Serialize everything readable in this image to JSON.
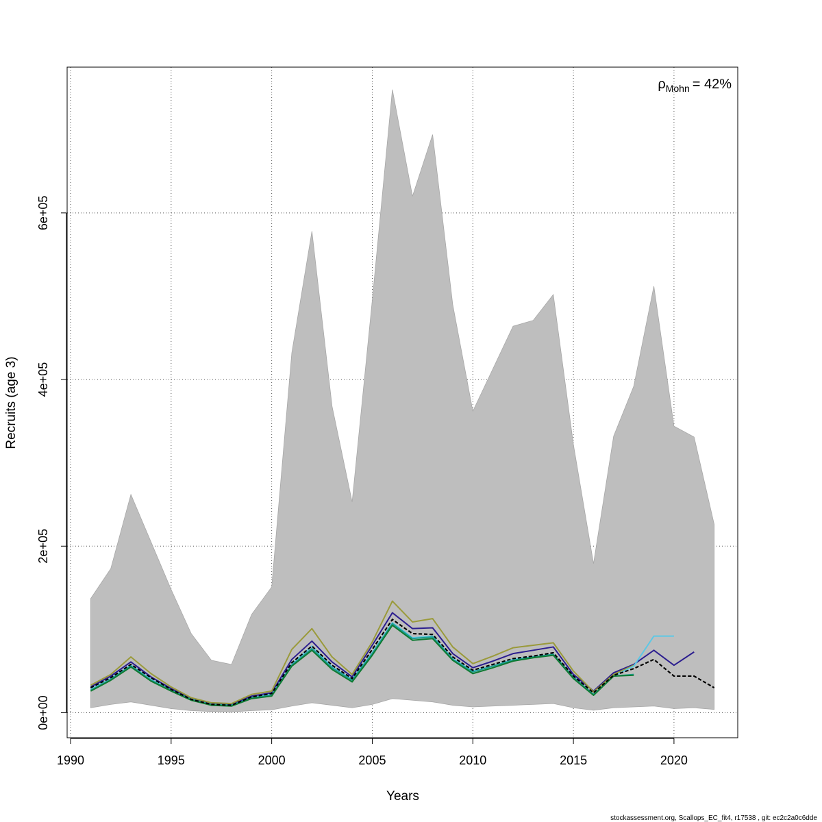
{
  "chart_data": {
    "type": "line",
    "title": "",
    "xlabel": "Years",
    "ylabel": "Recruits (age 3)",
    "xlim": [
      1990,
      2023
    ],
    "ylim": [
      -30000,
      775000
    ],
    "grid": true,
    "x_ticks": [
      1990,
      1995,
      2000,
      2005,
      2010,
      2015,
      2020
    ],
    "x_tick_labels": [
      "1990",
      "1995",
      "2000",
      "2005",
      "2010",
      "2015",
      "2020"
    ],
    "y_ticks": [
      0,
      200000,
      400000,
      600000
    ],
    "y_tick_labels": [
      "0e+00",
      "2e+05",
      "4e+05",
      "6e+05"
    ],
    "annotation": {
      "symbol": "ρ",
      "subscript": "Mohn",
      "text": "= 42%",
      "placement": "top-right"
    },
    "footer": "stockassessment.org, Scallops_EC_fit4, r17538 , git: ec2c2a0c6dde",
    "band": {
      "color": "#bebebe",
      "x": [
        1991,
        1992,
        1993,
        1994,
        1995,
        1996,
        1997,
        1998,
        1999,
        2000,
        2001,
        2002,
        2003,
        2004,
        2005,
        2006,
        2007,
        2008,
        2009,
        2010,
        2011,
        2012,
        2013,
        2014,
        2015,
        2016,
        2017,
        2018,
        2019,
        2020,
        2021,
        2022
      ],
      "upper": [
        137000,
        173000,
        262000,
        205000,
        148000,
        95000,
        63000,
        58000,
        118000,
        151000,
        432000,
        578000,
        368000,
        253000,
        495000,
        748000,
        620000,
        694000,
        490000,
        362000,
        413000,
        464000,
        471000,
        502000,
        322000,
        179000,
        332000,
        392000,
        512000,
        344000,
        331000,
        226000
      ],
      "lower": [
        6000,
        10000,
        13000,
        9000,
        5000,
        2500,
        1500,
        1000,
        2500,
        3500,
        8000,
        12000,
        9000,
        6000,
        10000,
        17000,
        15000,
        13000,
        9000,
        7000,
        8000,
        9000,
        10000,
        11000,
        6000,
        3000,
        6000,
        7000,
        8000,
        5000,
        6000,
        4000
      ]
    },
    "series": [
      {
        "color": "#000000",
        "dash": true,
        "x": [
          1991,
          1992,
          1993,
          1994,
          1995,
          1996,
          1997,
          1998,
          1999,
          2000,
          2001,
          2002,
          2003,
          2004,
          2005,
          2006,
          2007,
          2008,
          2009,
          2010,
          2011,
          2012,
          2013,
          2014,
          2015,
          2016,
          2017,
          2018,
          2019,
          2020,
          2021,
          2022
        ],
        "values": [
          30000,
          42000,
          58000,
          42000,
          28000,
          16000,
          10000,
          9000,
          19000,
          23000,
          60000,
          80000,
          57000,
          41000,
          76000,
          112000,
          95000,
          94000,
          67000,
          51000,
          58000,
          65000,
          68000,
          72000,
          44000,
          24000,
          45000,
          53000,
          64000,
          44000,
          44000,
          30000
        ]
      },
      {
        "color": "#2c1e8f",
        "dash": false,
        "x": [
          1991,
          1992,
          1993,
          1994,
          1995,
          1996,
          1997,
          1998,
          1999,
          2000,
          2001,
          2002,
          2003,
          2004,
          2005,
          2006,
          2007,
          2008,
          2009,
          2010,
          2011,
          2012,
          2013,
          2014,
          2015,
          2016,
          2017,
          2018,
          2019,
          2020,
          2021
        ],
        "values": [
          31000,
          44000,
          61000,
          43000,
          29000,
          17000,
          11000,
          10000,
          20000,
          24000,
          64000,
          86000,
          61000,
          43000,
          81000,
          120000,
          101000,
          102000,
          71000,
          54000,
          62000,
          71000,
          75000,
          79000,
          46000,
          26000,
          48000,
          58000,
          75000,
          57000,
          73000
        ]
      },
      {
        "color": "#9a9a3a",
        "dash": false,
        "x": [
          1991,
          1992,
          1993,
          1994,
          1995,
          1996,
          1997,
          1998,
          1999,
          2000,
          2001,
          2002,
          2003,
          2004,
          2005,
          2006,
          2007,
          2008,
          2009,
          2010,
          2011,
          2012,
          2013,
          2014,
          2015,
          2016,
          2017,
          2018
        ],
        "values": [
          33000,
          46000,
          67000,
          47000,
          31000,
          18000,
          12000,
          11000,
          22000,
          26000,
          76000,
          101000,
          67000,
          46000,
          85000,
          134000,
          109000,
          113000,
          79000,
          59000,
          68000,
          78000,
          81000,
          84000,
          50000,
          25000,
          46000,
          57000
        ]
      },
      {
        "color": "#5bc8e6",
        "dash": false,
        "x": [
          1991,
          1992,
          1993,
          1994,
          1995,
          1996,
          1997,
          1998,
          1999,
          2000,
          2001,
          2002,
          2003,
          2004,
          2005,
          2006,
          2007,
          2008,
          2009,
          2010,
          2011,
          2012,
          2013,
          2014,
          2015,
          2016,
          2017,
          2018,
          2019,
          2020
        ],
        "values": [
          28000,
          41000,
          57000,
          40000,
          27000,
          16000,
          10000,
          9000,
          18000,
          22000,
          58000,
          80000,
          55000,
          40000,
          72000,
          108000,
          90000,
          92000,
          65000,
          50000,
          56000,
          64000,
          67000,
          70000,
          42000,
          22000,
          44000,
          56000,
          92000,
          92000
        ]
      },
      {
        "color": "#1a9e8f",
        "dash": false,
        "x": [
          1991,
          1992,
          1993,
          1994,
          1995,
          1996,
          1997,
          1998,
          1999,
          2000,
          2001,
          2002,
          2003,
          2004,
          2005,
          2006,
          2007,
          2008,
          2009,
          2010,
          2011,
          2012,
          2013,
          2014,
          2015,
          2016,
          2017,
          2018
        ],
        "values": [
          27000,
          40000,
          56000,
          39000,
          27000,
          16000,
          10000,
          9000,
          18000,
          21000,
          57000,
          77000,
          54000,
          39000,
          71000,
          107000,
          89000,
          91000,
          64000,
          49000,
          56000,
          63000,
          67000,
          70000,
          43000,
          22000,
          44000,
          46000
        ]
      },
      {
        "color": "#0f7a32",
        "dash": false,
        "x": [
          1991,
          1992,
          1993,
          1994,
          1995,
          1996,
          1997,
          1998,
          1999,
          2000,
          2001,
          2002,
          2003,
          2004,
          2005,
          2006,
          2007,
          2008,
          2009,
          2010,
          2011,
          2012,
          2013,
          2014,
          2015,
          2016,
          2017,
          2018
        ],
        "values": [
          26000,
          39000,
          55000,
          38000,
          26000,
          15000,
          9000,
          8000,
          17000,
          20000,
          56000,
          75000,
          52000,
          37000,
          69000,
          105000,
          87000,
          89000,
          63000,
          47000,
          54000,
          62000,
          66000,
          69000,
          41000,
          21000,
          44000,
          45000
        ]
      }
    ]
  }
}
